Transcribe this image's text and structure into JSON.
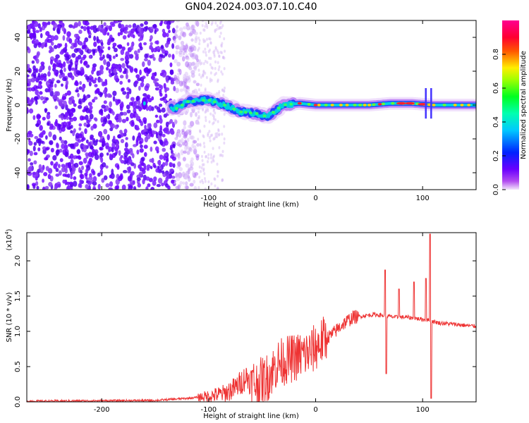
{
  "title": "GN04.2024.003.07.10.C40",
  "chart_data": [
    {
      "type": "heatmap",
      "name": "spectrogram",
      "xlabel": "Height of straight line (km)",
      "ylabel": "Frequency (Hz)",
      "xlim": [
        -270,
        150
      ],
      "ylim": [
        -50,
        50
      ],
      "xticks": [
        -200,
        -100,
        0,
        100
      ],
      "yticks": [
        -40,
        -20,
        0,
        20,
        40
      ],
      "colorbar": {
        "label": "Normalized spectral amplitude",
        "range": [
          0.0,
          1.0
        ],
        "ticks": [
          "0.0",
          "0.2",
          "0.4",
          "0.6",
          "0.8"
        ],
        "colormap": "rainbow (purple-blue-cyan-green-yellow-red-magenta)"
      },
      "ridge": {
        "description": "dominant frequency trace",
        "points": [
          {
            "x": -160,
            "y": 1
          },
          {
            "x": -130,
            "y": -2
          },
          {
            "x": -120,
            "y": 2
          },
          {
            "x": -100,
            "y": 3
          },
          {
            "x": -85,
            "y": 0
          },
          {
            "x": -70,
            "y": -4
          },
          {
            "x": -55,
            "y": -5
          },
          {
            "x": -45,
            "y": -7
          },
          {
            "x": -35,
            "y": -2
          },
          {
            "x": -30,
            "y": 0
          },
          {
            "x": -15,
            "y": 1
          },
          {
            "x": 0,
            "y": 0
          },
          {
            "x": 20,
            "y": 0
          },
          {
            "x": 50,
            "y": 0
          },
          {
            "x": 70,
            "y": 1
          },
          {
            "x": 90,
            "y": 1
          },
          {
            "x": 110,
            "y": 0
          },
          {
            "x": 150,
            "y": 0
          }
        ]
      }
    },
    {
      "type": "line",
      "name": "snr",
      "xlabel": "Height of straight line (km)",
      "ylabel": "SNR (10 * v/v)",
      "yscale_label": "(x10",
      "yscale_exp": "4",
      "xlim": [
        -270,
        150
      ],
      "ylim": [
        0,
        2.4
      ],
      "xticks": [
        -200,
        -100,
        0,
        100
      ],
      "yticks": [
        "0.0",
        "0.5",
        "1.0",
        "1.5",
        "2.0"
      ],
      "color": "#ee3333",
      "series": [
        {
          "values_note": "values in units of 10^4",
          "points": [
            {
              "x": -270,
              "y": 0.01
            },
            {
              "x": -150,
              "y": 0.02
            },
            {
              "x": -120,
              "y": 0.05
            },
            {
              "x": -100,
              "y": 0.08
            },
            {
              "x": -85,
              "y": 0.12
            },
            {
              "x": -75,
              "y": 0.2
            },
            {
              "x": -65,
              "y": 0.35
            },
            {
              "x": -55,
              "y": 0.25
            },
            {
              "x": -45,
              "y": 0.35
            },
            {
              "x": -35,
              "y": 0.55
            },
            {
              "x": -25,
              "y": 0.6
            },
            {
              "x": -15,
              "y": 0.65
            },
            {
              "x": -5,
              "y": 0.7
            },
            {
              "x": 5,
              "y": 0.85
            },
            {
              "x": 15,
              "y": 0.95
            },
            {
              "x": 25,
              "y": 1.1
            },
            {
              "x": 35,
              "y": 1.2
            },
            {
              "x": 45,
              "y": 1.22
            },
            {
              "x": 55,
              "y": 1.24
            },
            {
              "x": 65,
              "y": 1.22
            },
            {
              "x": 75,
              "y": 1.2
            },
            {
              "x": 85,
              "y": 1.2
            },
            {
              "x": 95,
              "y": 1.18
            },
            {
              "x": 105,
              "y": 1.16
            },
            {
              "x": 115,
              "y": 1.12
            },
            {
              "x": 130,
              "y": 1.1
            },
            {
              "x": 150,
              "y": 1.07
            }
          ],
          "spikes": [
            {
              "x": 65,
              "y": 1.87
            },
            {
              "x": 66,
              "y": 0.4
            },
            {
              "x": 78,
              "y": 1.6
            },
            {
              "x": 92,
              "y": 1.7
            },
            {
              "x": 103,
              "y": 1.75
            },
            {
              "x": 107,
              "y": 2.38
            },
            {
              "x": 108,
              "y": 0.05
            }
          ]
        }
      ]
    }
  ]
}
